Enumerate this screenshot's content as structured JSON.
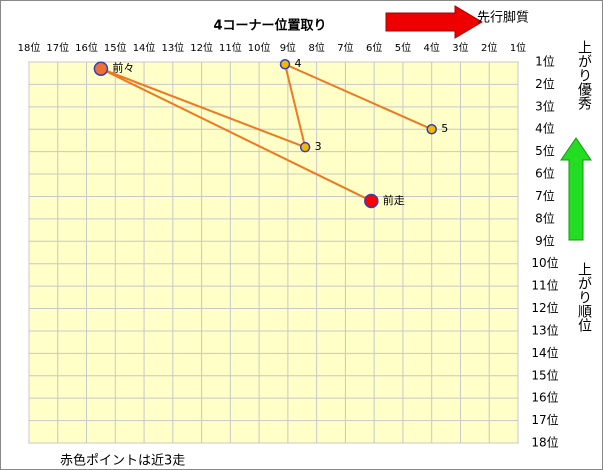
{
  "chart_data": {
    "type": "scatter",
    "title": "4コーナー位置取り",
    "annotations": {
      "lead": "先行脚質",
      "finish_good": "上がり優秀",
      "finish_rank": "上がり順位",
      "note": "赤色ポイントは近3走"
    },
    "point_labels": [
      "5",
      "4",
      "3",
      "前々",
      "前走"
    ],
    "x": [
      4.0,
      9.1,
      8.4,
      15.5,
      6.1
    ],
    "values": [
      4.0,
      1.1,
      4.8,
      1.3,
      7.2
    ],
    "colors": [
      "#f5b800",
      "#f5b800",
      "#f5b800",
      "#f07030",
      "#ff0000"
    ],
    "line_color": "#f07820",
    "marker_edge_color": "#3040c0",
    "xlim": [
      18,
      1
    ],
    "ylim": [
      18,
      1
    ],
    "xticks": [
      {
        "value": 18,
        "label": "18位"
      },
      {
        "value": 17,
        "label": "17位"
      },
      {
        "value": 16,
        "label": "16位"
      },
      {
        "value": 15,
        "label": "15位"
      },
      {
        "value": 14,
        "label": "14位"
      },
      {
        "value": 13,
        "label": "13位"
      },
      {
        "value": 12,
        "label": "12位"
      },
      {
        "value": 11,
        "label": "11位"
      },
      {
        "value": 10,
        "label": "10位"
      },
      {
        "value": 9,
        "label": "9位"
      },
      {
        "value": 8,
        "label": "8位"
      },
      {
        "value": 7,
        "label": "7位"
      },
      {
        "value": 6,
        "label": "6位"
      },
      {
        "value": 5,
        "label": "5位"
      },
      {
        "value": 4,
        "label": "4位"
      },
      {
        "value": 3,
        "label": "3位"
      },
      {
        "value": 2,
        "label": "2位"
      },
      {
        "value": 1,
        "label": "1位"
      }
    ],
    "yticks": [
      {
        "value": 1,
        "label": "1位"
      },
      {
        "value": 2,
        "label": "2位"
      },
      {
        "value": 3,
        "label": "3位"
      },
      {
        "value": 4,
        "label": "4位"
      },
      {
        "value": 5,
        "label": "5位"
      },
      {
        "value": 6,
        "label": "6位"
      },
      {
        "value": 7,
        "label": "7位"
      },
      {
        "value": 8,
        "label": "8位"
      },
      {
        "value": 9,
        "label": "9位"
      },
      {
        "value": 10,
        "label": "10位"
      },
      {
        "value": 11,
        "label": "11位"
      },
      {
        "value": 12,
        "label": "12位"
      },
      {
        "value": 13,
        "label": "13位"
      },
      {
        "value": 14,
        "label": "14位"
      },
      {
        "value": 15,
        "label": "15位"
      },
      {
        "value": 16,
        "label": "16位"
      },
      {
        "value": 17,
        "label": "17位"
      },
      {
        "value": 18,
        "label": "18位"
      }
    ],
    "grid": true,
    "plot_background": "#ffffc8"
  }
}
